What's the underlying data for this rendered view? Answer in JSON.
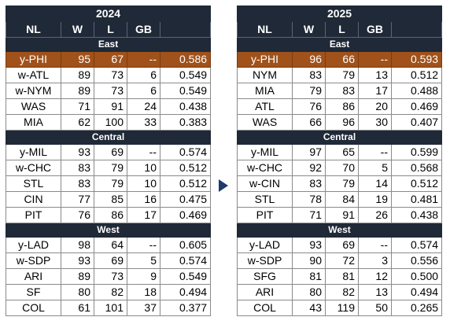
{
  "colors": {
    "header_bg": "#1f2937",
    "highlight_bg": "#a0521a",
    "arrow": "#1f3a6b"
  },
  "arrow_icon": "triangle-right-icon",
  "tables": [
    {
      "year": "2024",
      "headers": {
        "team": "NL",
        "w": "W",
        "l": "L",
        "gb": "GB",
        "pct": ""
      },
      "divisions": [
        {
          "name": "East",
          "rows": [
            {
              "team": "y-PHI",
              "w": "95",
              "l": "67",
              "gb": "--",
              "pct": "0.586"
            },
            {
              "team": "w-ATL",
              "w": "89",
              "l": "73",
              "gb": "6",
              "pct": "0.549"
            },
            {
              "team": "w-NYM",
              "w": "89",
              "l": "73",
              "gb": "6",
              "pct": "0.549"
            },
            {
              "team": "WAS",
              "w": "71",
              "l": "91",
              "gb": "24",
              "pct": "0.438"
            },
            {
              "team": "MIA",
              "w": "62",
              "l": "100",
              "gb": "33",
              "pct": "0.383"
            }
          ]
        },
        {
          "name": "Central",
          "rows": [
            {
              "team": "y-MIL",
              "w": "93",
              "l": "69",
              "gb": "--",
              "pct": "0.574"
            },
            {
              "team": "w-CHC",
              "w": "83",
              "l": "79",
              "gb": "10",
              "pct": "0.512"
            },
            {
              "team": "STL",
              "w": "83",
              "l": "79",
              "gb": "10",
              "pct": "0.512"
            },
            {
              "team": "CIN",
              "w": "77",
              "l": "85",
              "gb": "16",
              "pct": "0.475"
            },
            {
              "team": "PIT",
              "w": "76",
              "l": "86",
              "gb": "17",
              "pct": "0.469"
            }
          ]
        },
        {
          "name": "West",
          "rows": [
            {
              "team": "y-LAD",
              "w": "98",
              "l": "64",
              "gb": "--",
              "pct": "0.605"
            },
            {
              "team": "w-SDP",
              "w": "93",
              "l": "69",
              "gb": "5",
              "pct": "0.574"
            },
            {
              "team": "ARI",
              "w": "89",
              "l": "73",
              "gb": "9",
              "pct": "0.549"
            },
            {
              "team": "SF",
              "w": "80",
              "l": "82",
              "gb": "18",
              "pct": "0.494"
            },
            {
              "team": "COL",
              "w": "61",
              "l": "101",
              "gb": "37",
              "pct": "0.377"
            }
          ]
        }
      ]
    },
    {
      "year": "2025",
      "headers": {
        "team": "NL",
        "w": "W",
        "l": "L",
        "gb": "GB",
        "pct": ""
      },
      "divisions": [
        {
          "name": "East",
          "rows": [
            {
              "team": "y-PHI",
              "w": "96",
              "l": "66",
              "gb": "--",
              "pct": "0.593"
            },
            {
              "team": "NYM",
              "w": "83",
              "l": "79",
              "gb": "13",
              "pct": "0.512"
            },
            {
              "team": "MIA",
              "w": "79",
              "l": "83",
              "gb": "17",
              "pct": "0.488"
            },
            {
              "team": "ATL",
              "w": "76",
              "l": "86",
              "gb": "20",
              "pct": "0.469"
            },
            {
              "team": "WAS",
              "w": "66",
              "l": "96",
              "gb": "30",
              "pct": "0.407"
            }
          ]
        },
        {
          "name": "Central",
          "rows": [
            {
              "team": "y-MIL",
              "w": "97",
              "l": "65",
              "gb": "--",
              "pct": "0.599"
            },
            {
              "team": "w-CHC",
              "w": "92",
              "l": "70",
              "gb": "5",
              "pct": "0.568"
            },
            {
              "team": "w-CIN",
              "w": "83",
              "l": "79",
              "gb": "14",
              "pct": "0.512"
            },
            {
              "team": "STL",
              "w": "78",
              "l": "84",
              "gb": "19",
              "pct": "0.481"
            },
            {
              "team": "PIT",
              "w": "71",
              "l": "91",
              "gb": "26",
              "pct": "0.438"
            }
          ]
        },
        {
          "name": "West",
          "rows": [
            {
              "team": "y-LAD",
              "w": "93",
              "l": "69",
              "gb": "--",
              "pct": "0.574"
            },
            {
              "team": "w-SDP",
              "w": "90",
              "l": "72",
              "gb": "3",
              "pct": "0.556"
            },
            {
              "team": "SFG",
              "w": "81",
              "l": "81",
              "gb": "12",
              "pct": "0.500"
            },
            {
              "team": "ARI",
              "w": "80",
              "l": "82",
              "gb": "13",
              "pct": "0.494"
            },
            {
              "team": "COL",
              "w": "43",
              "l": "119",
              "gb": "50",
              "pct": "0.265"
            }
          ]
        }
      ]
    }
  ]
}
